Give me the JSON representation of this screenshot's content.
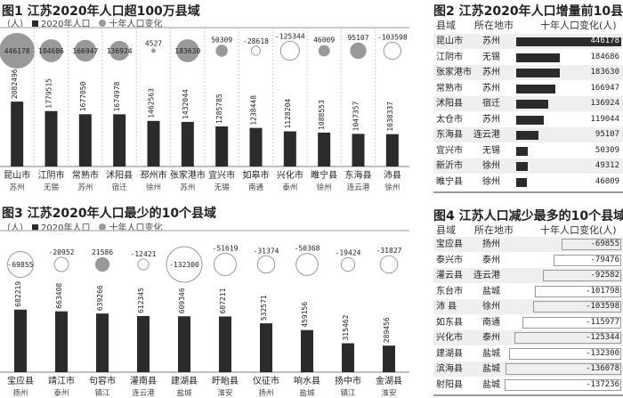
{
  "fig1": {
    "title": "图1 江苏2020年人口超100万县域",
    "unit": "（人）",
    "legend_pop": "2020年人口",
    "legend_change": "十年人口变化"
  },
  "fig3": {
    "title": "图3 江苏2020年人口最少的10个县域",
    "unit": "（人）",
    "legend_pop": "2020年人口",
    "legend_change": "十年人口变化"
  },
  "fig2": {
    "title": "图2 江苏2020年人口增量前10县域",
    "headers": [
      "县域",
      "所在地市",
      "十年人口变化(人)"
    ]
  },
  "fig4": {
    "title": "图4  江苏人口减少最多的10个县域",
    "headers": [
      "县域",
      "所在地市",
      "十年人口变化(人)"
    ]
  },
  "colors": {
    "bar": "#2b2b2b",
    "bubble_positive": "#999999",
    "bubble_negative_stroke": "#999999",
    "row_alt": "#efefef"
  },
  "chart_data": [
    {
      "type": "bar+bubble",
      "id": "fig1",
      "categories": [
        "昆山市",
        "江阴市",
        "常熟市",
        "沭阳县",
        "邳州市",
        "张家港市",
        "宜兴市",
        "如皋市",
        "兴化市",
        "睢宁县",
        "东海县",
        "沛县"
      ],
      "cities": [
        "苏州",
        "无锡",
        "苏州",
        "宿迁",
        "徐州",
        "苏州",
        "无锡",
        "南通",
        "泰州",
        "徐州",
        "连云港",
        "徐州"
      ],
      "population_2020": [
        2082496,
        1779515,
        1677050,
        1674978,
        1462563,
        1432044,
        1285785,
        1238448,
        1128204,
        1088553,
        1047357,
        1038337
      ],
      "change_10yr": [
        446178,
        184686,
        166947,
        136924,
        4527,
        183630,
        50309,
        -28618,
        -125344,
        46009,
        95107,
        -103598
      ]
    },
    {
      "type": "bar+bubble",
      "id": "fig3",
      "categories": [
        "宝应县",
        "靖江市",
        "句容市",
        "灌南县",
        "建湖县",
        "盱眙县",
        "仪征市",
        "响水县",
        "扬中市",
        "金湖县"
      ],
      "cities": [
        "扬州",
        "泰州",
        "镇江",
        "连云港",
        "盐城",
        "淮安",
        "扬州",
        "盐城",
        "镇江",
        "淮安"
      ],
      "population_2020": [
        682219,
        663408,
        639266,
        612345,
        609346,
        607211,
        532571,
        459156,
        315462,
        289456
      ],
      "change_10yr": [
        -69855,
        -20952,
        21586,
        -12421,
        -132300,
        -51619,
        -31374,
        -50368,
        -19424,
        -31827
      ]
    },
    {
      "type": "table",
      "id": "fig2",
      "rows": [
        [
          "昆山市",
          "苏州",
          446178
        ],
        [
          "江阴市",
          "无锡",
          184686
        ],
        [
          "张家港市",
          "苏州",
          183630
        ],
        [
          "常熟市",
          "苏州",
          166947
        ],
        [
          "沭阳县",
          "宿迁",
          136924
        ],
        [
          "太仓市",
          "苏州",
          119044
        ],
        [
          "东海县",
          "连云港",
          95107
        ],
        [
          "宜兴市",
          "无锡",
          50309
        ],
        [
          "新沂市",
          "徐州",
          49312
        ],
        [
          "睢宁县",
          "徐州",
          46009
        ]
      ]
    },
    {
      "type": "table",
      "id": "fig4",
      "rows": [
        [
          "宝应县",
          "扬州",
          -69855
        ],
        [
          "泰兴市",
          "泰州",
          -79476
        ],
        [
          "灌云县",
          "连云港",
          -92582
        ],
        [
          "东台市",
          "盐城",
          -101798
        ],
        [
          "沛  县",
          "徐州",
          -103598
        ],
        [
          "如东县",
          "南通",
          -115977
        ],
        [
          "兴化市",
          "泰州",
          -125344
        ],
        [
          "建湖县",
          "盐城",
          -132300
        ],
        [
          "滨海县",
          "盐城",
          -136078
        ],
        [
          "射阳县",
          "盐城",
          -137236
        ]
      ]
    }
  ]
}
